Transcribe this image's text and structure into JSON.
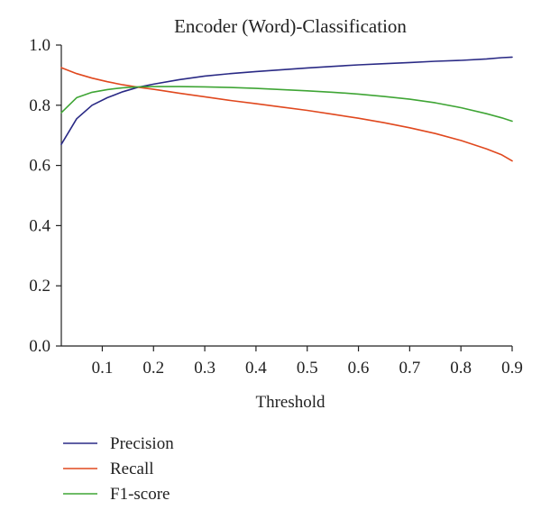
{
  "chart_data": {
    "type": "line",
    "title": "Encoder (Word)-Classification",
    "xlabel": "Threshold",
    "ylabel": "",
    "xlim": [
      0.02,
      0.9
    ],
    "ylim": [
      0.0,
      1.0
    ],
    "x_ticks": [
      0.1,
      0.2,
      0.3,
      0.4,
      0.5,
      0.6,
      0.7,
      0.8,
      0.9
    ],
    "x_tick_labels": [
      "0.1",
      "0.2",
      "0.3",
      "0.4",
      "0.5",
      "0.6",
      "0.7",
      "0.8",
      "0.9"
    ],
    "y_ticks": [
      0.0,
      0.2,
      0.4,
      0.6,
      0.8,
      1.0
    ],
    "y_tick_labels": [
      "0.0",
      "0.2",
      "0.4",
      "0.6",
      "0.8",
      "1.0"
    ],
    "grid": false,
    "legend_position": "bottom-left",
    "x": [
      0.02,
      0.05,
      0.08,
      0.11,
      0.14,
      0.17,
      0.2,
      0.25,
      0.3,
      0.35,
      0.4,
      0.45,
      0.5,
      0.55,
      0.6,
      0.65,
      0.7,
      0.75,
      0.8,
      0.85,
      0.88,
      0.9
    ],
    "series": [
      {
        "name": "Precision",
        "color": "#2a2a85",
        "values": [
          0.67,
          0.755,
          0.8,
          0.825,
          0.845,
          0.86,
          0.87,
          0.885,
          0.897,
          0.905,
          0.912,
          0.918,
          0.924,
          0.929,
          0.934,
          0.938,
          0.942,
          0.946,
          0.949,
          0.954,
          0.958,
          0.96
        ]
      },
      {
        "name": "Recall",
        "color": "#e0481e",
        "values": [
          0.925,
          0.905,
          0.89,
          0.878,
          0.868,
          0.86,
          0.853,
          0.84,
          0.828,
          0.816,
          0.805,
          0.794,
          0.783,
          0.77,
          0.757,
          0.742,
          0.725,
          0.706,
          0.683,
          0.655,
          0.635,
          0.615
        ]
      },
      {
        "name": "F1-score",
        "color": "#3fa535",
        "values": [
          0.775,
          0.825,
          0.843,
          0.852,
          0.858,
          0.861,
          0.862,
          0.862,
          0.861,
          0.859,
          0.856,
          0.852,
          0.848,
          0.843,
          0.837,
          0.829,
          0.82,
          0.808,
          0.792,
          0.772,
          0.758,
          0.747
        ]
      }
    ]
  }
}
